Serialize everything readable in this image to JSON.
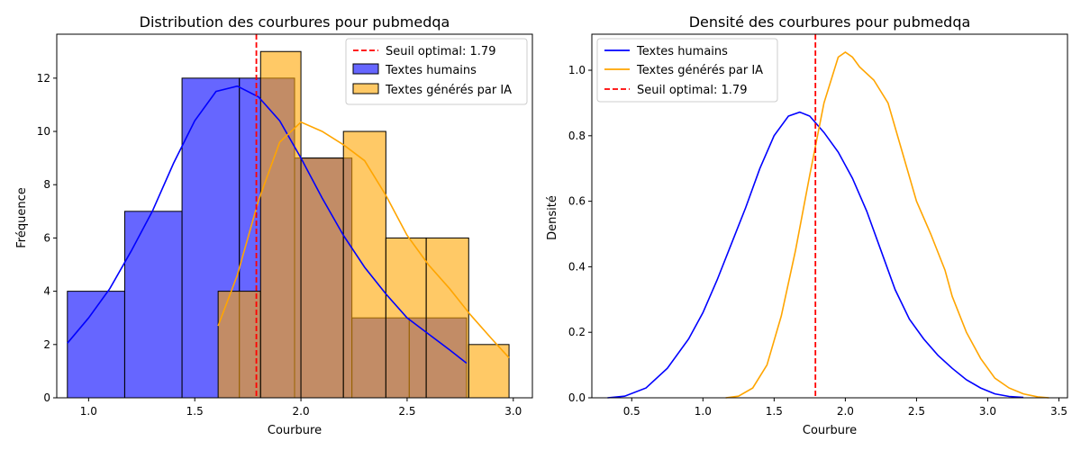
{
  "chart_data": [
    {
      "type": "histogram",
      "title": "Distribution des courbures pour pubmedqa",
      "xlabel": "Courbure",
      "ylabel": "Fréquence",
      "xlim": [
        0.85,
        3.09
      ],
      "ylim": [
        0,
        13.65
      ],
      "xticks": [
        1.0,
        1.5,
        2.0,
        2.5,
        3.0
      ],
      "xtick_labels": [
        "1.0",
        "1.5",
        "2.0",
        "2.5",
        "3.0"
      ],
      "yticks": [
        0,
        2,
        4,
        6,
        8,
        10,
        12
      ],
      "ytick_labels": [
        "0",
        "2",
        "4",
        "6",
        "8",
        "10",
        "12"
      ],
      "legend_position": "top-right",
      "threshold": {
        "label": "Seuil optimal: 1.79",
        "x": 1.79,
        "color": "#ff0000"
      },
      "series": [
        {
          "name": "Textes humains",
          "color": "#0000ff",
          "bins": [
            {
              "x0": 0.9,
              "x1": 1.17,
              "count": 4
            },
            {
              "x0": 1.17,
              "x1": 1.44,
              "count": 7
            },
            {
              "x0": 1.44,
              "x1": 1.71,
              "count": 12
            },
            {
              "x0": 1.71,
              "x1": 1.97,
              "count": 12
            },
            {
              "x0": 1.97,
              "x1": 2.24,
              "count": 9
            },
            {
              "x0": 2.24,
              "x1": 2.51,
              "count": 3
            },
            {
              "x0": 2.51,
              "x1": 2.78,
              "count": 3
            }
          ],
          "kde": {
            "x": [
              0.9,
              1.0,
              1.1,
              1.2,
              1.3,
              1.4,
              1.5,
              1.6,
              1.7,
              1.8,
              1.9,
              2.0,
              2.1,
              2.2,
              2.3,
              2.4,
              2.5,
              2.6,
              2.7,
              2.78
            ],
            "y": [
              2.05,
              3.0,
              4.1,
              5.5,
              7.0,
              8.8,
              10.4,
              11.5,
              11.7,
              11.3,
              10.4,
              9.0,
              7.5,
              6.1,
              4.9,
              3.9,
              3.0,
              2.4,
              1.8,
              1.3
            ]
          }
        },
        {
          "name": "Textes générés par IA",
          "color": "#ffa500",
          "bins": [
            {
              "x0": 1.61,
              "x1": 1.81,
              "count": 4
            },
            {
              "x0": 1.81,
              "x1": 2.0,
              "count": 13
            },
            {
              "x0": 2.0,
              "x1": 2.2,
              "count": 9
            },
            {
              "x0": 2.2,
              "x1": 2.4,
              "count": 10
            },
            {
              "x0": 2.4,
              "x1": 2.59,
              "count": 6
            },
            {
              "x0": 2.59,
              "x1": 2.79,
              "count": 6
            },
            {
              "x0": 2.79,
              "x1": 2.98,
              "count": 2
            }
          ],
          "kde": {
            "x": [
              1.61,
              1.7,
              1.8,
              1.9,
              2.0,
              2.1,
              2.2,
              2.3,
              2.4,
              2.5,
              2.6,
              2.7,
              2.8,
              2.9,
              2.98
            ],
            "y": [
              2.7,
              4.6,
              7.4,
              9.6,
              10.35,
              10.0,
              9.5,
              8.9,
              7.6,
              6.1,
              5.0,
              4.1,
              3.1,
              2.2,
              1.5
            ]
          }
        }
      ]
    },
    {
      "type": "line",
      "title": "Densité des courbures pour pubmedqa",
      "xlabel": "Courbure",
      "ylabel": "Densité",
      "xlim": [
        0.22,
        3.56
      ],
      "ylim": [
        0,
        1.11
      ],
      "xticks": [
        0.5,
        1.0,
        1.5,
        2.0,
        2.5,
        3.0,
        3.5
      ],
      "xtick_labels": [
        "0.5",
        "1.0",
        "1.5",
        "2.0",
        "2.5",
        "3.0",
        "3.5"
      ],
      "yticks": [
        0,
        0.2,
        0.4,
        0.6,
        0.8,
        1.0
      ],
      "ytick_labels": [
        "0.0",
        "0.2",
        "0.4",
        "0.6",
        "0.8",
        "1.0"
      ],
      "legend_position": "top-left",
      "threshold": {
        "label": "Seuil optimal: 1.79",
        "x": 1.79,
        "color": "#ff0000"
      },
      "series": [
        {
          "name": "Textes humains",
          "color": "#0000ff",
          "x": [
            0.33,
            0.45,
            0.6,
            0.75,
            0.9,
            1.0,
            1.1,
            1.2,
            1.3,
            1.4,
            1.5,
            1.6,
            1.68,
            1.75,
            1.85,
            1.95,
            2.05,
            2.15,
            2.25,
            2.35,
            2.45,
            2.55,
            2.65,
            2.75,
            2.85,
            2.95,
            3.05,
            3.15,
            3.25
          ],
          "y": [
            0.0,
            0.005,
            0.03,
            0.09,
            0.18,
            0.26,
            0.36,
            0.47,
            0.58,
            0.7,
            0.8,
            0.86,
            0.872,
            0.86,
            0.81,
            0.75,
            0.67,
            0.57,
            0.45,
            0.33,
            0.24,
            0.18,
            0.13,
            0.09,
            0.055,
            0.03,
            0.012,
            0.004,
            0.001
          ]
        },
        {
          "name": "Textes générés par IA",
          "color": "#ffa500",
          "x": [
            1.16,
            1.25,
            1.35,
            1.45,
            1.55,
            1.65,
            1.75,
            1.85,
            1.95,
            2.0,
            2.05,
            2.1,
            2.2,
            2.3,
            2.4,
            2.5,
            2.6,
            2.7,
            2.75,
            2.85,
            2.95,
            3.05,
            3.15,
            3.25,
            3.35,
            3.43
          ],
          "y": [
            0.0,
            0.005,
            0.03,
            0.1,
            0.25,
            0.45,
            0.68,
            0.9,
            1.04,
            1.055,
            1.04,
            1.01,
            0.97,
            0.9,
            0.75,
            0.6,
            0.5,
            0.39,
            0.31,
            0.2,
            0.12,
            0.06,
            0.03,
            0.012,
            0.003,
            0.0
          ]
        }
      ]
    }
  ]
}
